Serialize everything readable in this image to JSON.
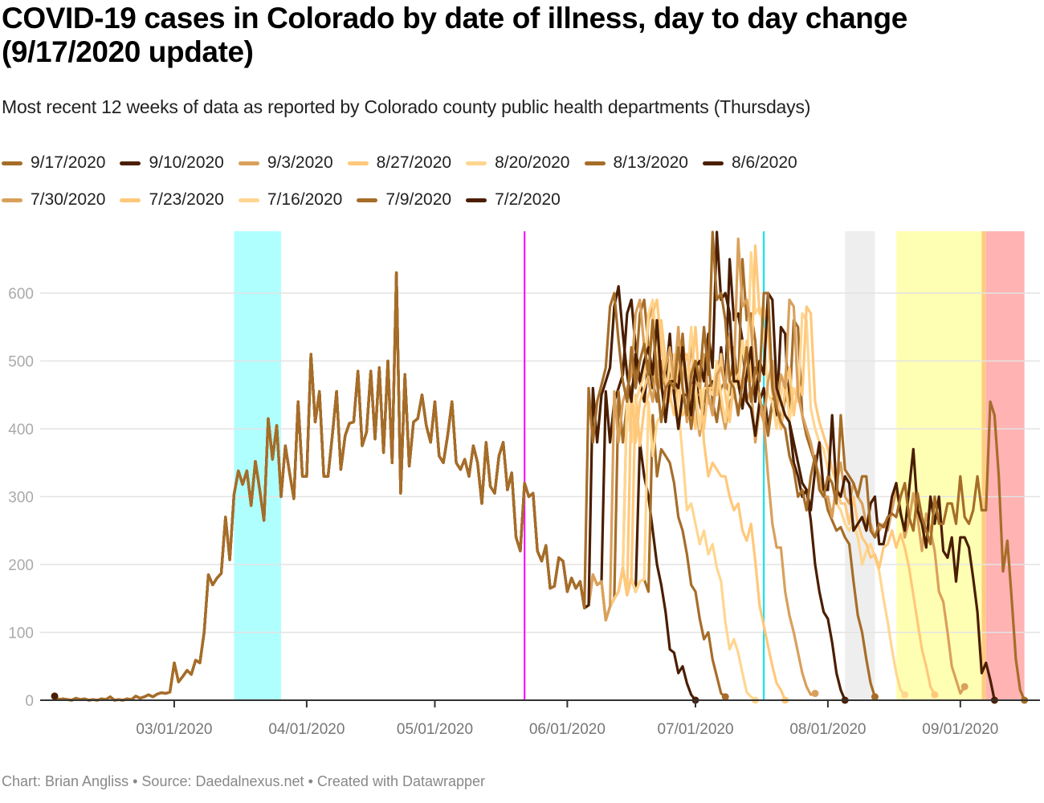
{
  "title": "COVID-19 cases in Colorado by date of illness, day to day change (9/17/2020 update)",
  "subtitle": "Most recent 12 weeks of data as reported by Colorado county public health departments (Thursdays)",
  "footer": {
    "chart_by_label": "Chart: Brian Angliss",
    "source_label": "Source: Daedalnexus.net",
    "created_label": "Created with Datawrapper",
    "separator": "•"
  },
  "chart_data": {
    "type": "line",
    "title": "COVID-19 cases in Colorado by date of illness, day to day change (9/17/2020 update)",
    "xlabel": "",
    "ylabel": "",
    "ylim": [
      0,
      690
    ],
    "x_start_date": "2020-02-02",
    "x_end_date": "2020-09-17",
    "y_ticks": [
      0,
      100,
      200,
      300,
      400,
      500,
      600
    ],
    "y_tick_labels": [
      "0",
      "100",
      "200",
      "300",
      "400",
      "500",
      "600"
    ],
    "x_ticks": [
      {
        "label": "03/01/2020",
        "day": 28
      },
      {
        "label": "04/01/2020",
        "day": 59
      },
      {
        "label": "05/01/2020",
        "day": 89
      },
      {
        "label": "06/01/2020",
        "day": 120
      },
      {
        "label": "07/01/2020",
        "day": 150
      },
      {
        "label": "08/01/2020",
        "day": 181
      },
      {
        "label": "09/01/2020",
        "day": 212
      }
    ],
    "grid": true,
    "legend_position": "top",
    "annotations": {
      "bands": [
        {
          "name": "cyan-band",
          "from_day": 42,
          "to_day": 53,
          "color": "#b0ffff"
        },
        {
          "name": "gray-band",
          "from_day": 185,
          "to_day": 192,
          "color": "#eeeeee"
        },
        {
          "name": "yellow-band",
          "from_day": 197,
          "to_day": 217,
          "color": "#ffffb3"
        },
        {
          "name": "orange-band",
          "from_day": 217,
          "to_day": 218,
          "color": "#ffcc80"
        },
        {
          "name": "red-band",
          "from_day": 218,
          "to_day": 227,
          "color": "#ffb3b3"
        }
      ],
      "lines": [
        {
          "name": "magenta-line",
          "day": 110,
          "color": "#ff00ff"
        },
        {
          "name": "cyan-line",
          "day": 166,
          "color": "#00e5ee"
        }
      ]
    },
    "base_series_values": [
      6,
      1,
      2,
      1,
      0,
      3,
      1,
      2,
      0,
      1,
      0,
      2,
      1,
      5,
      0,
      1,
      0,
      2,
      1,
      6,
      3,
      5,
      8,
      5,
      9,
      11,
      10,
      12,
      55,
      27,
      35,
      44,
      38,
      59,
      55,
      100,
      185,
      170,
      180,
      187,
      270,
      207,
      303,
      338,
      318,
      338,
      287,
      352,
      310,
      265,
      415,
      355,
      405,
      300,
      375,
      335,
      297,
      440,
      330,
      330,
      510,
      410,
      455,
      330,
      330,
      390,
      455,
      340,
      390,
      408,
      410,
      485,
      375,
      395,
      485,
      385,
      490,
      365,
      500,
      350,
      630,
      305,
      480,
      345,
      410,
      415,
      450,
      405,
      380,
      440,
      360,
      350,
      390,
      440,
      350,
      340,
      355,
      330,
      375,
      350,
      290,
      380,
      315,
      305,
      360,
      380,
      310,
      335,
      240,
      220,
      320,
      300,
      305,
      220,
      205,
      228,
      165,
      168,
      210,
      205,
      160,
      180,
      165,
      175,
      136,
      140,
      185,
      170,
      175,
      118,
      138,
      150,
      160,
      195,
      155,
      180,
      160,
      175,
      178,
      160,
      198,
      170,
      168,
      212,
      262,
      292,
      410,
      300,
      370,
      282,
      253,
      282,
      335,
      318,
      372,
      392,
      342,
      325
    ],
    "series": [
      {
        "name": "9/17/2020",
        "color": "#a66d28",
        "end_day": 227,
        "tail": [
          460,
          380,
          440,
          465,
          490,
          580,
          600,
          530,
          470,
          440,
          520,
          460,
          500,
          525,
          480,
          560,
          470,
          410,
          460,
          470,
          460,
          520,
          460,
          420,
          480,
          500,
          470,
          550,
          480,
          690,
          590,
          600,
          560,
          470,
          460,
          420,
          470,
          520,
          440,
          490,
          470,
          600,
          600,
          460,
          430,
          410,
          400,
          360,
          340,
          300,
          310,
          280,
          330,
          360,
          310,
          300,
          330,
          320,
          290,
          420,
          340,
          330,
          320,
          300,
          330,
          330,
          250,
          240,
          260,
          255,
          270,
          275,
          270,
          300,
          320,
          270,
          250,
          305,
          270,
          250,
          230,
          300,
          260,
          260,
          290,
          290,
          260,
          330,
          270,
          260,
          280,
          330,
          280,
          280,
          440,
          420,
          330,
          190,
          235,
          150,
          60,
          15,
          0
        ]
      },
      {
        "name": "9/10/2020",
        "color": "#4a1e00",
        "end_day": 220,
        "tail": [
          460,
          380,
          450,
          470,
          490,
          580,
          610,
          540,
          480,
          440,
          510,
          470,
          500,
          520,
          480,
          560,
          470,
          410,
          470,
          470,
          460,
          520,
          460,
          420,
          490,
          500,
          470,
          540,
          490,
          690,
          590,
          600,
          570,
          470,
          470,
          430,
          480,
          520,
          440,
          500,
          480,
          600,
          590,
          460,
          440,
          420,
          410,
          350,
          330,
          300,
          310,
          280,
          340,
          380,
          310,
          310,
          420,
          310,
          300,
          330,
          320,
          250,
          260,
          270,
          250,
          290,
          300,
          230,
          230,
          260,
          300,
          320,
          275,
          250,
          310,
          370,
          280,
          260,
          225,
          300,
          260,
          300,
          220,
          210,
          240,
          175,
          240,
          240,
          225,
          180,
          130,
          40,
          55,
          30,
          0
        ]
      },
      {
        "name": "9/3/2020",
        "color": "#d9a05b",
        "end_day": 213,
        "tail": [
          455,
          380,
          440,
          460,
          480,
          570,
          590,
          520,
          470,
          440,
          500,
          460,
          490,
          520,
          470,
          550,
          460,
          410,
          460,
          470,
          460,
          510,
          450,
          420,
          480,
          490,
          460,
          540,
          480,
          680,
          580,
          590,
          550,
          460,
          450,
          410,
          470,
          500,
          430,
          480,
          460,
          590,
          580,
          450,
          420,
          400,
          380,
          350,
          330,
          300,
          300,
          270,
          320,
          350,
          300,
          290,
          320,
          300,
          290,
          260,
          260,
          240,
          250,
          260,
          250,
          280,
          310,
          280,
          240,
          265,
          305,
          270,
          220,
          275,
          250,
          220,
          160,
          145,
          100,
          50,
          30,
          10,
          20
        ]
      },
      {
        "name": "8/27/2020",
        "color": "#ffc87a",
        "end_day": 206,
        "tail": [
          455,
          380,
          440,
          460,
          480,
          570,
          590,
          520,
          470,
          440,
          500,
          460,
          490,
          510,
          470,
          550,
          460,
          400,
          460,
          460,
          450,
          510,
          450,
          410,
          470,
          480,
          460,
          530,
          470,
          670,
          570,
          580,
          540,
          450,
          440,
          400,
          460,
          490,
          420,
          470,
          450,
          580,
          570,
          440,
          410,
          390,
          370,
          340,
          320,
          290,
          290,
          260,
          300,
          260,
          240,
          230,
          210,
          215,
          195,
          225,
          230,
          250,
          225,
          245,
          225,
          195,
          155,
          115,
          75,
          50,
          20,
          8
        ]
      },
      {
        "name": "8/20/2020",
        "color": "#ffd68f",
        "end_day": 199,
        "tail": [
          455,
          380,
          440,
          460,
          480,
          570,
          590,
          520,
          470,
          440,
          500,
          460,
          490,
          510,
          470,
          550,
          460,
          400,
          460,
          460,
          450,
          500,
          450,
          410,
          470,
          480,
          460,
          530,
          470,
          660,
          570,
          580,
          540,
          450,
          440,
          400,
          450,
          480,
          410,
          460,
          440,
          570,
          560,
          430,
          400,
          380,
          370,
          340,
          320,
          290,
          280,
          260,
          250,
          260,
          240,
          200,
          220,
          230,
          210,
          190,
          150,
          115,
          75,
          40,
          15,
          8
        ]
      },
      {
        "name": "8/13/2020",
        "color": "#a66d28",
        "end_day": 192,
        "tail": [
          455,
          380,
          440,
          460,
          480,
          570,
          590,
          520,
          470,
          440,
          500,
          460,
          480,
          500,
          470,
          540,
          450,
          400,
          450,
          450,
          440,
          500,
          440,
          410,
          460,
          470,
          450,
          520,
          460,
          650,
          560,
          570,
          530,
          440,
          430,
          390,
          440,
          470,
          400,
          450,
          430,
          560,
          550,
          420,
          390,
          370,
          350,
          330,
          310,
          280,
          265,
          250,
          255,
          240,
          230,
          175,
          125,
          100,
          60,
          25,
          5
        ]
      },
      {
        "name": "8/6/2020",
        "color": "#4a1e00",
        "end_day": 185,
        "tail": [
          455,
          380,
          440,
          460,
          480,
          570,
          590,
          520,
          470,
          440,
          500,
          460,
          480,
          500,
          470,
          540,
          450,
          400,
          450,
          450,
          440,
          500,
          440,
          410,
          460,
          470,
          450,
          520,
          460,
          650,
          560,
          570,
          530,
          440,
          430,
          390,
          440,
          460,
          400,
          440,
          420,
          550,
          540,
          410,
          380,
          350,
          320,
          310,
          265,
          200,
          160,
          130,
          120,
          85,
          40,
          15,
          0
        ]
      },
      {
        "name": "7/30/2020",
        "color": "#d9a05b",
        "end_day": 178,
        "tail": [
          450,
          380,
          440,
          460,
          480,
          560,
          580,
          510,
          460,
          430,
          490,
          450,
          470,
          490,
          460,
          530,
          440,
          390,
          440,
          440,
          430,
          490,
          430,
          400,
          440,
          450,
          430,
          450,
          440,
          460,
          380,
          430,
          410,
          330,
          260,
          225,
          225,
          160,
          125,
          100,
          70,
          40,
          20,
          8,
          10
        ]
      },
      {
        "name": "7/23/2020",
        "color": "#ffc87a",
        "end_day": 171,
        "tail": [
          450,
          375,
          430,
          450,
          470,
          550,
          560,
          500,
          450,
          420,
          470,
          420,
          430,
          440,
          400,
          480,
          380,
          330,
          350,
          340,
          330,
          330,
          300,
          280,
          290,
          250,
          235,
          260,
          205,
          140,
          110,
          80,
          50,
          25,
          15,
          0
        ]
      },
      {
        "name": "7/16/2020",
        "color": "#ffd68f",
        "end_day": 164,
        "tail": [
          440,
          360,
          410,
          420,
          440,
          500,
          510,
          430,
          360,
          280,
          290,
          260,
          230,
          250,
          215,
          230,
          195,
          175,
          115,
          75,
          90,
          70,
          40,
          12,
          5,
          0
        ]
      },
      {
        "name": "7/9/2020",
        "color": "#a66d28",
        "end_day": 157,
        "tail": [
          420,
          330,
          370,
          360,
          350,
          320,
          270,
          250,
          215,
          170,
          160,
          120,
          90,
          100,
          60,
          35,
          10,
          5
        ]
      },
      {
        "name": "7/2/2020",
        "color": "#4a1e00",
        "end_day": 150,
        "tail": [
          380,
          330,
          300,
          250,
          200,
          170,
          130,
          75,
          70,
          40,
          50,
          25,
          8,
          0
        ]
      }
    ]
  }
}
